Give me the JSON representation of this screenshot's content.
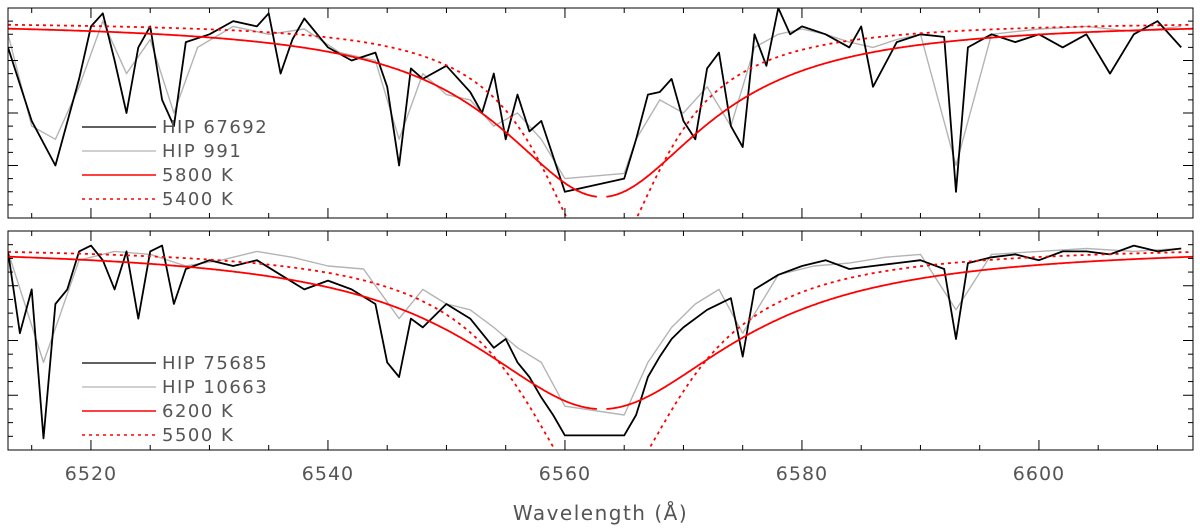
{
  "chart_data": [
    {
      "type": "line",
      "panel": "top",
      "xlabel": "",
      "xlim": [
        6513,
        6613
      ],
      "ylim": [
        0.25,
        1.05
      ],
      "x_ticks": [
        6520,
        6540,
        6560,
        6580,
        6600
      ],
      "legend_placement": "left",
      "colors": {
        "obs1": "#000000",
        "obs2": "#b4b4b4",
        "model": "#ff0000"
      },
      "series": [
        {
          "name": "HIP 67692",
          "kind": "observed",
          "style": "solid",
          "color": "#000000",
          "x": [
            6513,
            6515,
            6517,
            6519,
            6520,
            6521,
            6522,
            6523,
            6524,
            6525,
            6526,
            6527,
            6528,
            6530,
            6532,
            6534,
            6535,
            6536,
            6537,
            6538,
            6540,
            6542,
            6544,
            6545,
            6546,
            6547,
            6548,
            6550,
            6552,
            6553,
            6554,
            6555,
            6556,
            6557,
            6558,
            6560,
            6565,
            6566,
            6567,
            6568,
            6569,
            6570,
            6571,
            6572,
            6573,
            6574,
            6575,
            6576,
            6577,
            6578,
            6579,
            6580,
            6582,
            6584,
            6585,
            6586,
            6588,
            6590,
            6592,
            6593,
            6594,
            6596,
            6598,
            6600,
            6602,
            6604,
            6606,
            6608,
            6610,
            6612
          ],
          "y": [
            0.9,
            0.62,
            0.45,
            0.78,
            0.98,
            1.03,
            0.85,
            0.65,
            0.9,
            0.98,
            0.7,
            0.6,
            0.92,
            0.95,
            1.0,
            0.98,
            1.03,
            0.8,
            0.93,
            1.01,
            0.9,
            0.85,
            0.88,
            0.75,
            0.45,
            0.82,
            0.78,
            0.83,
            0.73,
            0.65,
            0.8,
            0.55,
            0.72,
            0.58,
            0.62,
            0.35,
            0.4,
            0.55,
            0.72,
            0.73,
            0.78,
            0.62,
            0.55,
            0.82,
            0.88,
            0.6,
            0.52,
            0.95,
            0.83,
            1.05,
            0.95,
            0.98,
            0.95,
            0.9,
            0.98,
            0.75,
            0.92,
            0.95,
            0.94,
            0.35,
            0.9,
            0.95,
            0.92,
            0.95,
            0.9,
            0.95,
            0.8,
            0.95,
            1.0,
            0.9
          ]
        },
        {
          "name": "HIP 991",
          "kind": "observed",
          "style": "solid",
          "color": "#b4b4b4",
          "x": [
            6513,
            6515,
            6517,
            6519,
            6521,
            6523,
            6525,
            6527,
            6529,
            6532,
            6535,
            6538,
            6541,
            6544,
            6546,
            6548,
            6550,
            6552,
            6554,
            6556,
            6558,
            6560,
            6565,
            6566,
            6568,
            6570,
            6572,
            6574,
            6576,
            6578,
            6580,
            6582,
            6584,
            6586,
            6588,
            6590,
            6593,
            6596,
            6600,
            6604,
            6608,
            6612
          ],
          "y": [
            0.95,
            0.6,
            0.55,
            0.75,
            1.0,
            0.8,
            0.93,
            0.65,
            0.9,
            0.98,
            0.95,
            0.97,
            0.88,
            0.85,
            0.55,
            0.8,
            0.72,
            0.7,
            0.6,
            0.65,
            0.55,
            0.4,
            0.42,
            0.55,
            0.7,
            0.65,
            0.75,
            0.6,
            0.9,
            0.95,
            0.97,
            0.95,
            0.92,
            0.9,
            0.93,
            0.95,
            0.45,
            0.95,
            0.97,
            0.98,
            0.96,
            0.98
          ]
        },
        {
          "name": "5800 K",
          "kind": "model",
          "style": "solid",
          "color": "#ff0000",
          "center": 6563.1,
          "depth": 0.33,
          "width": 10.6
        },
        {
          "name": "5400 K",
          "kind": "model",
          "style": "dotted",
          "color": "#ff0000",
          "center": 6563.1,
          "depth": 0.08,
          "width": 6.2
        }
      ]
    },
    {
      "type": "line",
      "panel": "bottom",
      "xlabel": "Wavelength (Å)",
      "xlim": [
        6513,
        6613
      ],
      "ylim": [
        0.3,
        1.05
      ],
      "x_ticks": [
        6520,
        6540,
        6560,
        6580,
        6600
      ],
      "legend_placement": "left",
      "colors": {
        "obs1": "#000000",
        "obs2": "#b4b4b4",
        "model": "#ff0000"
      },
      "series": [
        {
          "name": "HIP 75685",
          "kind": "observed",
          "style": "solid",
          "color": "#000000",
          "x": [
            6513,
            6514,
            6515,
            6516,
            6517,
            6518,
            6519,
            6520,
            6521,
            6522,
            6523,
            6524,
            6525,
            6526,
            6527,
            6528,
            6530,
            6532,
            6534,
            6536,
            6538,
            6540,
            6542,
            6544,
            6545,
            6546,
            6547,
            6548,
            6550,
            6552,
            6553,
            6554,
            6555,
            6556,
            6557,
            6558,
            6559,
            6560,
            6565,
            6566,
            6567,
            6568,
            6569,
            6570,
            6572,
            6574,
            6575,
            6576,
            6578,
            6580,
            6582,
            6584,
            6586,
            6588,
            6590,
            6592,
            6593,
            6594,
            6596,
            6598,
            6600,
            6602,
            6604,
            6606,
            6608,
            6610,
            6612
          ],
          "y": [
            0.98,
            0.7,
            0.85,
            0.34,
            0.8,
            0.85,
            0.98,
            1.0,
            0.95,
            0.85,
            0.98,
            0.75,
            0.98,
            1.0,
            0.8,
            0.92,
            0.95,
            0.93,
            0.95,
            0.9,
            0.85,
            0.88,
            0.85,
            0.8,
            0.6,
            0.55,
            0.75,
            0.72,
            0.8,
            0.75,
            0.7,
            0.65,
            0.68,
            0.6,
            0.55,
            0.48,
            0.42,
            0.35,
            0.35,
            0.42,
            0.55,
            0.62,
            0.68,
            0.72,
            0.78,
            0.82,
            0.62,
            0.85,
            0.9,
            0.93,
            0.95,
            0.92,
            0.93,
            0.94,
            0.95,
            0.92,
            0.68,
            0.94,
            0.96,
            0.97,
            0.95,
            0.98,
            0.98,
            0.97,
            1.0,
            0.98,
            0.99
          ]
        },
        {
          "name": "HIP 10663",
          "kind": "observed",
          "style": "solid",
          "color": "#b4b4b4",
          "x": [
            6513,
            6516,
            6519,
            6522,
            6525,
            6528,
            6531,
            6534,
            6537,
            6540,
            6543,
            6546,
            6548,
            6550,
            6552,
            6554,
            6556,
            6558,
            6560,
            6565,
            6567,
            6569,
            6571,
            6573,
            6575,
            6578,
            6581,
            6584,
            6587,
            6590,
            6593,
            6596,
            6600,
            6604,
            6608,
            6612
          ],
          "y": [
            0.98,
            0.6,
            0.95,
            0.98,
            0.97,
            0.93,
            0.95,
            0.98,
            0.96,
            0.93,
            0.92,
            0.75,
            0.85,
            0.8,
            0.78,
            0.72,
            0.65,
            0.6,
            0.45,
            0.42,
            0.6,
            0.72,
            0.8,
            0.85,
            0.7,
            0.9,
            0.93,
            0.94,
            0.96,
            0.97,
            0.78,
            0.97,
            0.98,
            0.99,
            0.98,
            0.99
          ]
        },
        {
          "name": "6200 K",
          "kind": "model",
          "style": "solid",
          "color": "#ff0000",
          "center": 6563.1,
          "depth": 0.44,
          "width": 13.5
        },
        {
          "name": "5500 K",
          "kind": "model",
          "style": "dotted",
          "color": "#ff0000",
          "center": 6563.1,
          "depth": 0.13,
          "width": 8.0
        }
      ]
    }
  ]
}
